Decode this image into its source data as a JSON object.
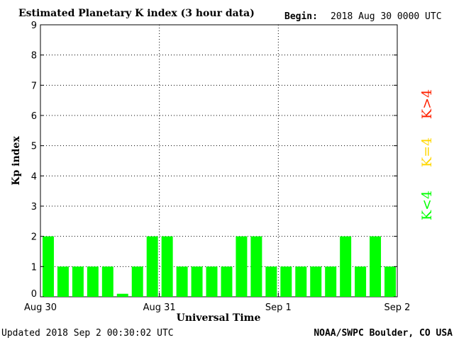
{
  "header": {
    "title": "Estimated Planetary K index (3 hour data)",
    "begin_label": "Begin:",
    "begin_value": "2018 Aug 30 0000 UTC"
  },
  "footer": {
    "updated": "Updated 2018 Sep  2 00:30:02 UTC",
    "credit": "NOAA/SWPC Boulder, CO USA"
  },
  "legend": {
    "items": [
      {
        "label": "K<4",
        "color": "#00ff00"
      },
      {
        "label": "K=4",
        "color": "#ffd700"
      },
      {
        "label": "K>4",
        "color": "#ff2200"
      }
    ]
  },
  "chart_data": {
    "type": "bar",
    "title": "Estimated Planetary K index (3 hour data)",
    "xlabel": "Universal Time",
    "ylabel": "Kp index",
    "ylim": [
      0,
      9
    ],
    "yticks": [
      0,
      1,
      2,
      3,
      4,
      5,
      6,
      7,
      8,
      9
    ],
    "x_day_labels": [
      "Aug 30",
      "Aug 31",
      "Sep 1",
      "Sep 2"
    ],
    "grid": true,
    "bar_color": "#00ff00",
    "values": [
      2,
      1,
      1,
      1,
      1,
      0.1,
      1,
      2,
      2,
      1,
      1,
      1,
      1,
      2,
      2,
      1,
      1,
      1,
      1,
      1,
      2,
      1,
      2,
      1
    ]
  }
}
